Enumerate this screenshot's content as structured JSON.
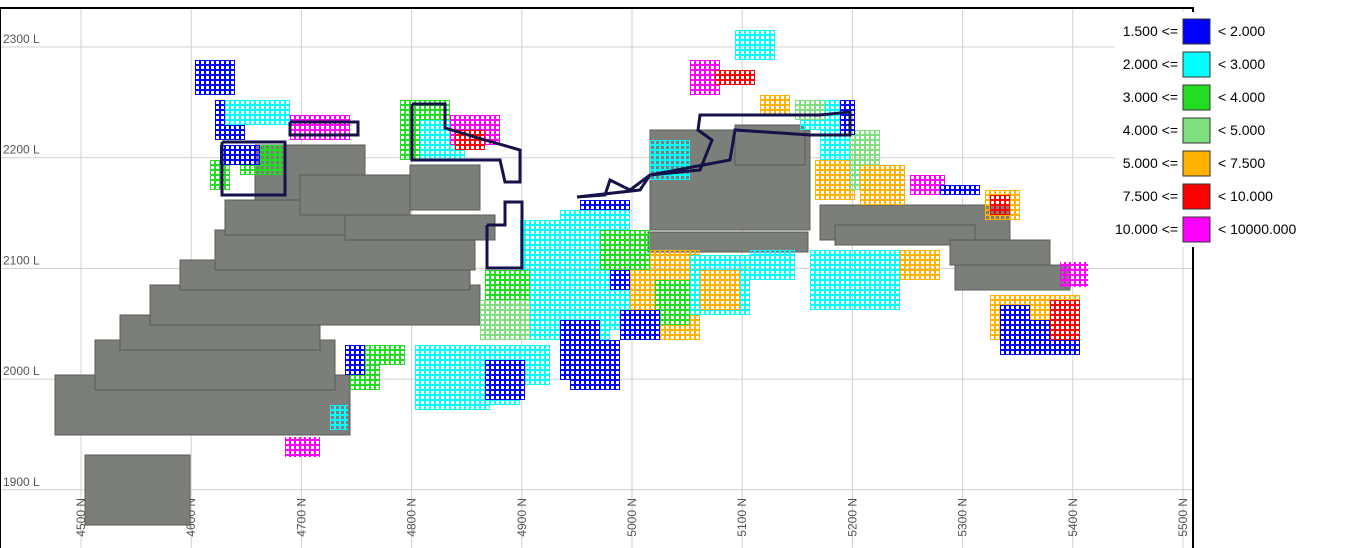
{
  "section": {
    "levels": [
      "2300 L",
      "2200 L",
      "2100 L",
      "2000 L",
      "1900 L"
    ],
    "northings": [
      "4500 N",
      "4600 N",
      "4700 N",
      "4800 N",
      "4900 N",
      "5000 N",
      "5100 N",
      "5200 N",
      "5300 N",
      "5400 N",
      "5500 N"
    ],
    "legend": [
      {
        "from": "1.500 <=",
        "to": "< 2.000",
        "color": "#0000ff"
      },
      {
        "from": "2.000 <=",
        "to": "< 3.000",
        "color": "#00ffff"
      },
      {
        "from": "3.000 <=",
        "to": "< 4.000",
        "color": "#22dd22"
      },
      {
        "from": "4.000 <=",
        "to": "< 5.000",
        "color": "#80e080"
      },
      {
        "from": "5.000 <=",
        "to": "< 7.500",
        "color": "#ffb300"
      },
      {
        "from": "7.500 <=",
        "to": "< 10.000",
        "color": "#ff0000"
      },
      {
        "from": "10.000 <=",
        "to": "< 10000.000",
        "color": "#ff00ff"
      }
    ]
  }
}
